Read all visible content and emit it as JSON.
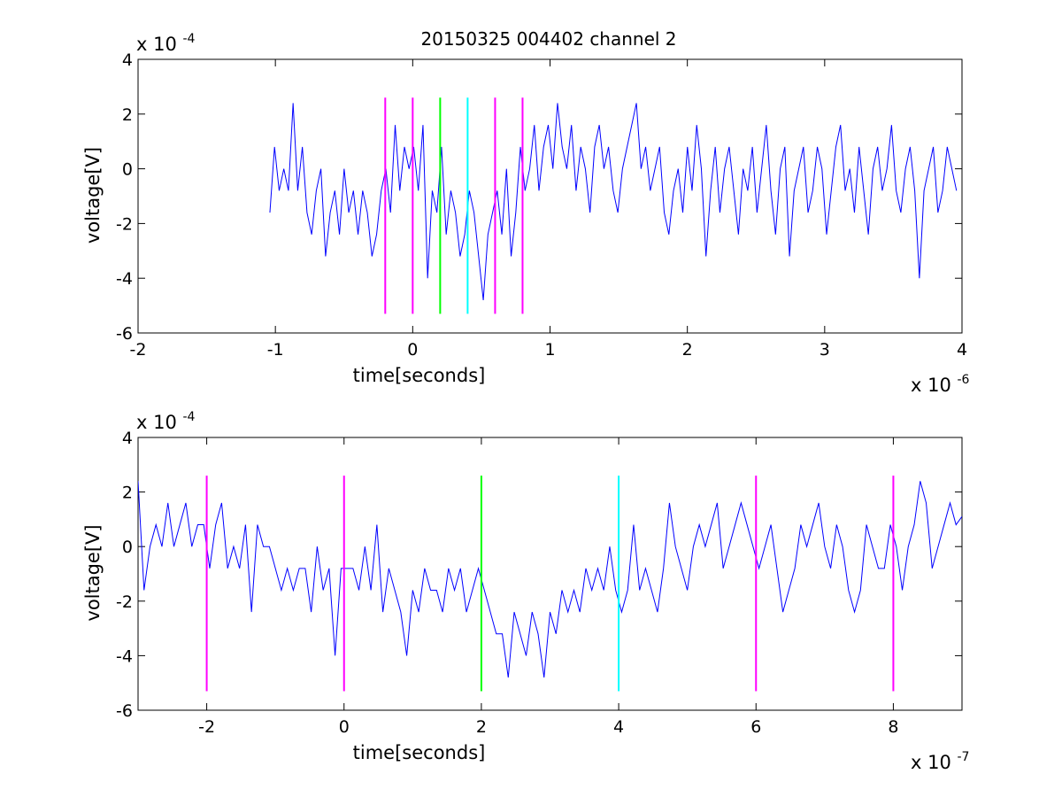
{
  "figure_title": "20150325 004402 channel 2",
  "chart_data": [
    {
      "type": "line",
      "title": "20150325 004402 channel 2",
      "xlabel": "time[seconds]",
      "ylabel": "voltage[V]",
      "xlim": [
        -2e-06,
        4e-06
      ],
      "ylim": [
        -0.0006,
        0.0004
      ],
      "x_ticks": [
        -2,
        -1,
        0,
        1,
        2,
        3,
        4
      ],
      "y_ticks": [
        -6,
        -4,
        -2,
        0,
        2,
        4
      ],
      "x_exponent_label": "x 10",
      "x_exponent": "-6",
      "y_exponent_label": "x 10",
      "y_exponent": "-4",
      "grid": false,
      "series": [
        {
          "color": "#0000ff",
          "x_start": -1.04e-06,
          "x_end": 3.96e-06,
          "values": [
            -0.00016,
            8e-05,
            -8e-05,
            0.0,
            -8e-05,
            0.00024,
            -8e-05,
            8e-05,
            -0.00016,
            -0.00024,
            -8e-05,
            0.0,
            -0.00032,
            -0.00016,
            -8e-05,
            -0.00024,
            0.0,
            -0.00016,
            -8e-05,
            -0.00024,
            -8e-05,
            -0.00016,
            -0.00032,
            -0.00024,
            -8e-05,
            0.0,
            -0.00016,
            0.00016,
            -8e-05,
            8e-05,
            0.0,
            8e-05,
            -8e-05,
            0.00016,
            -0.0004,
            -8e-05,
            -0.00016,
            8e-05,
            -0.00024,
            -8e-05,
            -0.00016,
            -0.00032,
            -0.00024,
            -8e-05,
            -0.00016,
            -0.00032,
            -0.00048,
            -0.00024,
            -0.00016,
            -8e-05,
            -0.00024,
            0.0,
            -0.00032,
            -0.00016,
            8e-05,
            -8e-05,
            0.0,
            0.00016,
            -8e-05,
            8e-05,
            0.00016,
            0.0,
            0.00024,
            8e-05,
            0.0,
            0.00016,
            -8e-05,
            8e-05,
            0.0,
            -0.00016,
            8e-05,
            0.00016,
            0.0,
            8e-05,
            -8e-05,
            -0.00016,
            0.0,
            8e-05,
            0.00016,
            0.00024,
            0.0,
            8e-05,
            -8e-05,
            0.0,
            8e-05,
            -0.00016,
            -0.00024,
            -8e-05,
            0.0,
            -0.00016,
            8e-05,
            -8e-05,
            0.00016,
            0.0,
            -0.00032,
            -8e-05,
            8e-05,
            -0.00016,
            0.0,
            8e-05,
            -8e-05,
            -0.00024,
            0.0,
            -8e-05,
            8e-05,
            -0.00016,
            0.0,
            0.00016,
            -8e-05,
            -0.00024,
            0.0,
            8e-05,
            -0.00032,
            -8e-05,
            0.0,
            8e-05,
            -0.00016,
            -8e-05,
            8e-05,
            0.0,
            -0.00024,
            -8e-05,
            8e-05,
            0.00016,
            -8e-05,
            0.0,
            -0.00016,
            8e-05,
            -8e-05,
            -0.00024,
            0.0,
            8e-05,
            -8e-05,
            0.0,
            0.00016,
            -8e-05,
            -0.00016,
            0.0,
            8e-05,
            -8e-05,
            -0.0004,
            -8e-05,
            0.0,
            8e-05,
            -0.00016,
            -8e-05,
            8e-05,
            0.0,
            -8e-05
          ]
        }
      ],
      "markers": [
        {
          "x": -2e-07,
          "color": "#ff00ff"
        },
        {
          "x": 0.0,
          "color": "#ff00ff"
        },
        {
          "x": 2e-07,
          "color": "#00ff00"
        },
        {
          "x": 4e-07,
          "color": "#00ffff"
        },
        {
          "x": 6e-07,
          "color": "#ff00ff"
        },
        {
          "x": 8e-07,
          "color": "#ff00ff"
        }
      ],
      "marker_ylim": [
        -0.00053,
        0.00026
      ]
    },
    {
      "type": "line",
      "title": "",
      "xlabel": "time[seconds]",
      "ylabel": "voltage[V]",
      "xlim": [
        -3e-07,
        9e-07
      ],
      "ylim": [
        -0.0006,
        0.0004
      ],
      "x_ticks": [
        -2,
        0,
        2,
        4,
        6,
        8
      ],
      "y_ticks": [
        -6,
        -4,
        -2,
        0,
        2,
        4
      ],
      "x_exponent_label": "x 10",
      "x_exponent": "-7",
      "y_exponent_label": "x 10",
      "y_exponent": "-4",
      "grid": false,
      "series": [
        {
          "color": "#0000ff",
          "x_start": -3e-07,
          "x_end": 9e-07,
          "values": [
            0.00024,
            -0.00016,
            0.0,
            8e-05,
            0.0,
            0.00016,
            0.0,
            8e-05,
            0.00016,
            0.0,
            8e-05,
            8e-05,
            -8e-05,
            8e-05,
            0.00016,
            -8e-05,
            0.0,
            -8e-05,
            8e-05,
            -0.00024,
            8e-05,
            0.0,
            0.0,
            -8e-05,
            -0.00016,
            -8e-05,
            -0.00016,
            -8e-05,
            -8e-05,
            -0.00024,
            0.0,
            -0.00016,
            -8e-05,
            -0.0004,
            -8e-05,
            -8e-05,
            -8e-05,
            -0.00016,
            0.0,
            -0.00016,
            8e-05,
            -0.00024,
            -8e-05,
            -0.00016,
            -0.00024,
            -0.0004,
            -0.00016,
            -0.00024,
            -8e-05,
            -0.00016,
            -0.00016,
            -0.00024,
            -8e-05,
            -0.00016,
            -8e-05,
            -0.00024,
            -0.00016,
            -8e-05,
            -0.00016,
            -0.00024,
            -0.00032,
            -0.00032,
            -0.00048,
            -0.00024,
            -0.00032,
            -0.0004,
            -0.00024,
            -0.00032,
            -0.00048,
            -0.00024,
            -0.00032,
            -0.00016,
            -0.00024,
            -0.00016,
            -0.00024,
            -8e-05,
            -0.00016,
            -8e-05,
            -0.00016,
            0.0,
            -0.00016,
            -0.00024,
            -0.00016,
            8e-05,
            -0.00016,
            -8e-05,
            -0.00016,
            -0.00024,
            -8e-05,
            0.00016,
            0.0,
            -8e-05,
            -0.00016,
            0.0,
            8e-05,
            0.0,
            8e-05,
            0.00016,
            -8e-05,
            0.0,
            8e-05,
            0.00016,
            8e-05,
            0.0,
            -8e-05,
            0.0,
            8e-05,
            -8e-05,
            -0.00024,
            -0.00016,
            -8e-05,
            8e-05,
            0.0,
            8e-05,
            0.00016,
            0.0,
            -8e-05,
            8e-05,
            0.0,
            -0.00016,
            -0.00024,
            -0.00016,
            8e-05,
            0.0,
            -8e-05,
            -8e-05,
            8e-05,
            0.0,
            -0.00016,
            0.0,
            8e-05,
            0.00024,
            0.00016,
            -8e-05,
            0.0,
            8e-05,
            0.00016,
            8e-05,
            0.00011
          ]
        }
      ],
      "markers": [
        {
          "x": -2e-07,
          "color": "#ff00ff"
        },
        {
          "x": 0.0,
          "color": "#ff00ff"
        },
        {
          "x": 2e-07,
          "color": "#00ff00"
        },
        {
          "x": 4e-07,
          "color": "#00ffff"
        },
        {
          "x": 6e-07,
          "color": "#ff00ff"
        },
        {
          "x": 8e-07,
          "color": "#ff00ff"
        }
      ],
      "marker_ylim": [
        -0.00053,
        0.00026
      ]
    }
  ]
}
